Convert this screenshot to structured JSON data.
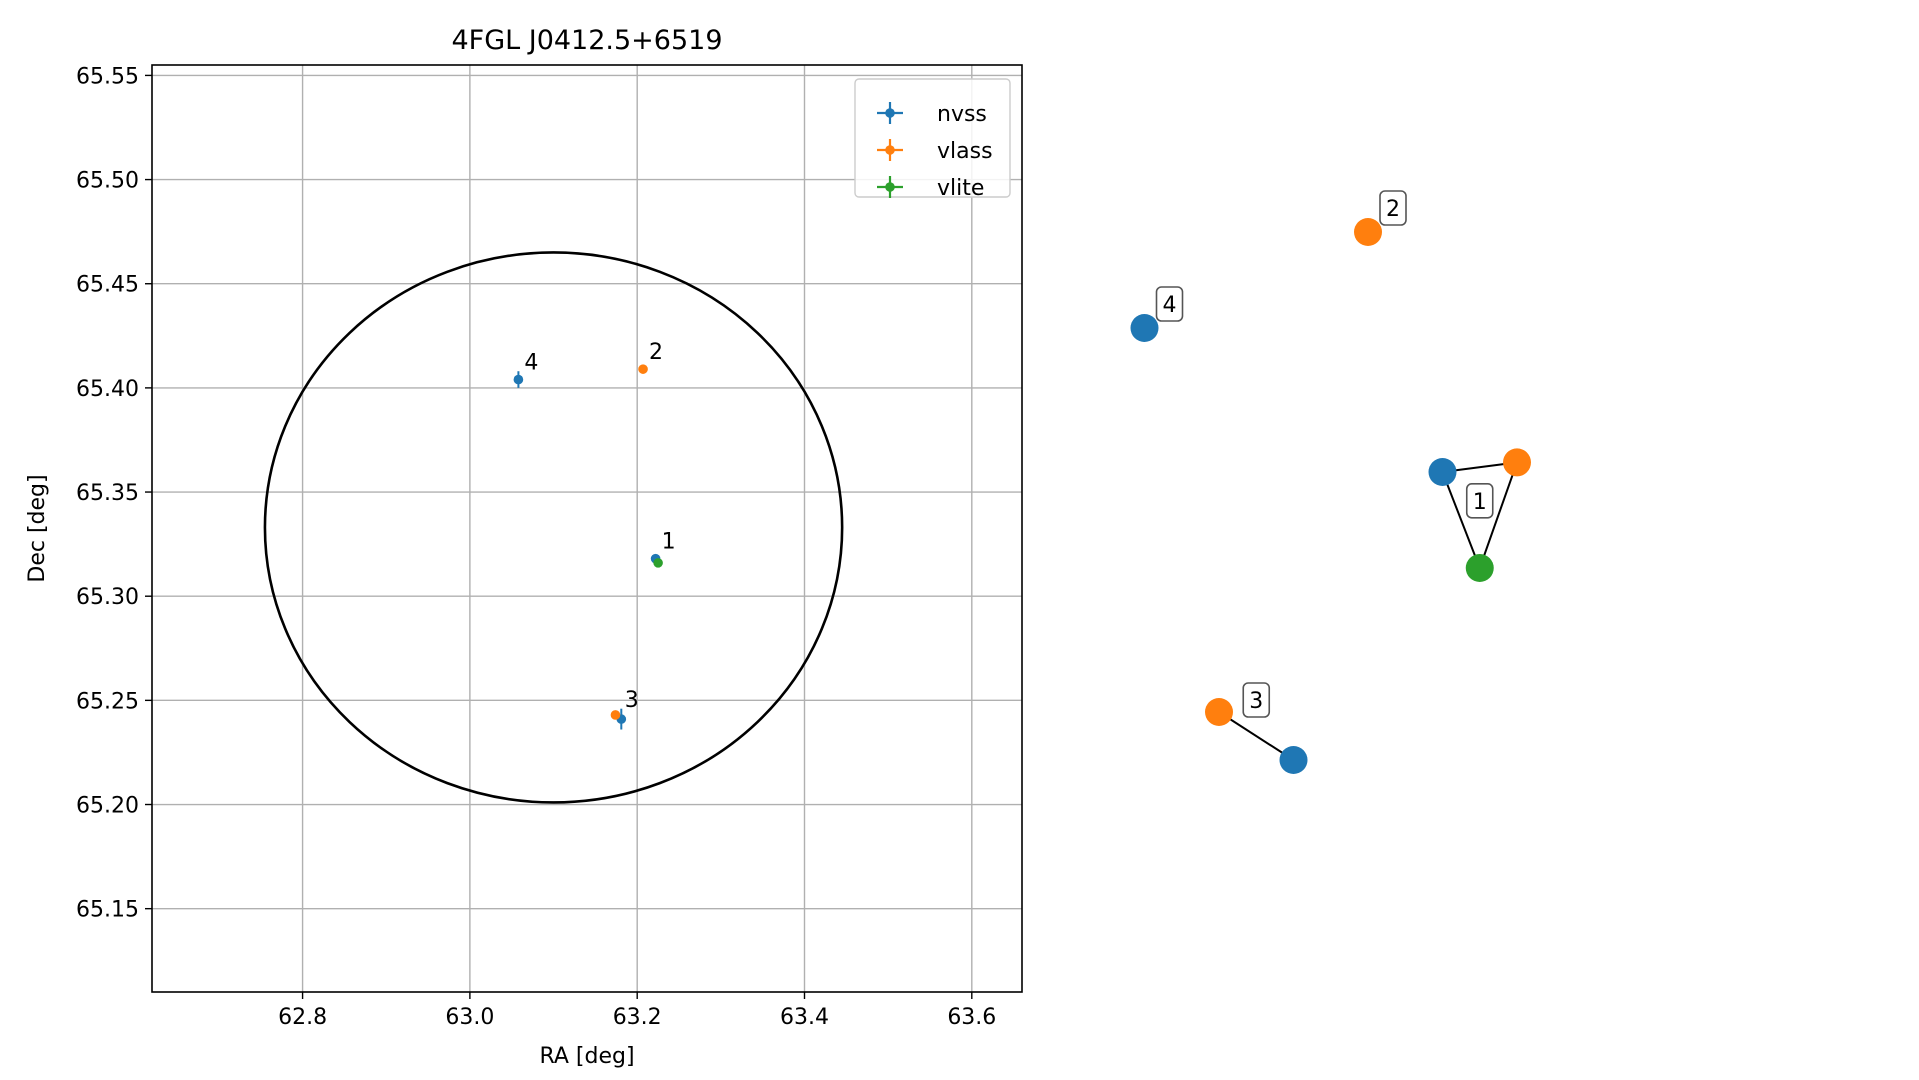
{
  "chart_data": [
    {
      "type": "scatter",
      "title": "4FGL J0412.5+6519",
      "xlabel": "RA [deg]",
      "ylabel": "Dec [deg]",
      "xlim": [
        62.62,
        63.66
      ],
      "ylim": [
        65.11,
        65.555
      ],
      "xticks": [
        62.8,
        63.0,
        63.2,
        63.4,
        63.6
      ],
      "xtick_labels": [
        "62.8",
        "63.0",
        "63.2",
        "63.4",
        "63.6"
      ],
      "yticks": [
        65.15,
        65.2,
        65.25,
        65.3,
        65.35,
        65.4,
        65.45,
        65.5,
        65.55
      ],
      "ytick_labels": [
        "65.15",
        "65.20",
        "65.25",
        "65.30",
        "65.35",
        "65.40",
        "65.45",
        "65.50",
        "65.55"
      ],
      "grid": true,
      "legend": "top-right",
      "error_ellipse": {
        "center": [
          63.1,
          65.333
        ],
        "semi_axes": [
          0.345,
          0.132
        ]
      },
      "series": [
        {
          "name": "nvss",
          "color": "#1f77b4",
          "points": [
            {
              "x": 63.222,
              "y": 65.318,
              "xerr": 0.003,
              "yerr": 0.002
            },
            {
              "x": 63.181,
              "y": 65.241,
              "xerr": 0.004,
              "yerr": 0.005
            },
            {
              "x": 63.058,
              "y": 65.404,
              "xerr": 0.004,
              "yerr": 0.004
            }
          ]
        },
        {
          "name": "vlass",
          "color": "#ff7f0e",
          "points": [
            {
              "x": 63.207,
              "y": 65.409,
              "xerr": 0.0,
              "yerr": 0.0
            },
            {
              "x": 63.174,
              "y": 65.243,
              "xerr": 0.0,
              "yerr": 0.0
            }
          ]
        },
        {
          "name": "vlite",
          "color": "#2ca02c",
          "points": [
            {
              "x": 63.225,
              "y": 65.316,
              "xerr": 0.002,
              "yerr": 0.002
            }
          ]
        }
      ],
      "annotations": [
        {
          "text": "1",
          "x": 63.222,
          "y": 65.318
        },
        {
          "text": "2",
          "x": 63.207,
          "y": 65.409
        },
        {
          "text": "3",
          "x": 63.178,
          "y": 65.242
        },
        {
          "text": "4",
          "x": 63.058,
          "y": 65.404
        }
      ]
    },
    {
      "type": "network",
      "nodes": [
        {
          "id": "n1",
          "color": "#1f77b4",
          "x": 0.5,
          "y": 0.55
        },
        {
          "id": "l1",
          "color": "#ff7f0e",
          "x": 0.6,
          "y": 0.56
        },
        {
          "id": "t1",
          "color": "#2ca02c",
          "x": 0.55,
          "y": 0.45
        },
        {
          "id": "l2",
          "color": "#ff7f0e",
          "x": 0.4,
          "y": 0.8
        },
        {
          "id": "n4",
          "color": "#1f77b4",
          "x": 0.1,
          "y": 0.7
        },
        {
          "id": "l3",
          "color": "#ff7f0e",
          "x": 0.2,
          "y": 0.3
        },
        {
          "id": "n3",
          "color": "#1f77b4",
          "x": 0.3,
          "y": 0.25
        }
      ],
      "edges": [
        [
          "n1",
          "l1"
        ],
        [
          "n1",
          "t1"
        ],
        [
          "l1",
          "t1"
        ],
        [
          "l3",
          "n3"
        ]
      ],
      "labels": [
        {
          "text": "1",
          "of": [
            "n1",
            "l1",
            "t1"
          ]
        },
        {
          "text": "2",
          "of": [
            "l2"
          ]
        },
        {
          "text": "3",
          "of": [
            "l3",
            "n3"
          ]
        },
        {
          "text": "4",
          "of": [
            "n4"
          ]
        }
      ]
    }
  ]
}
